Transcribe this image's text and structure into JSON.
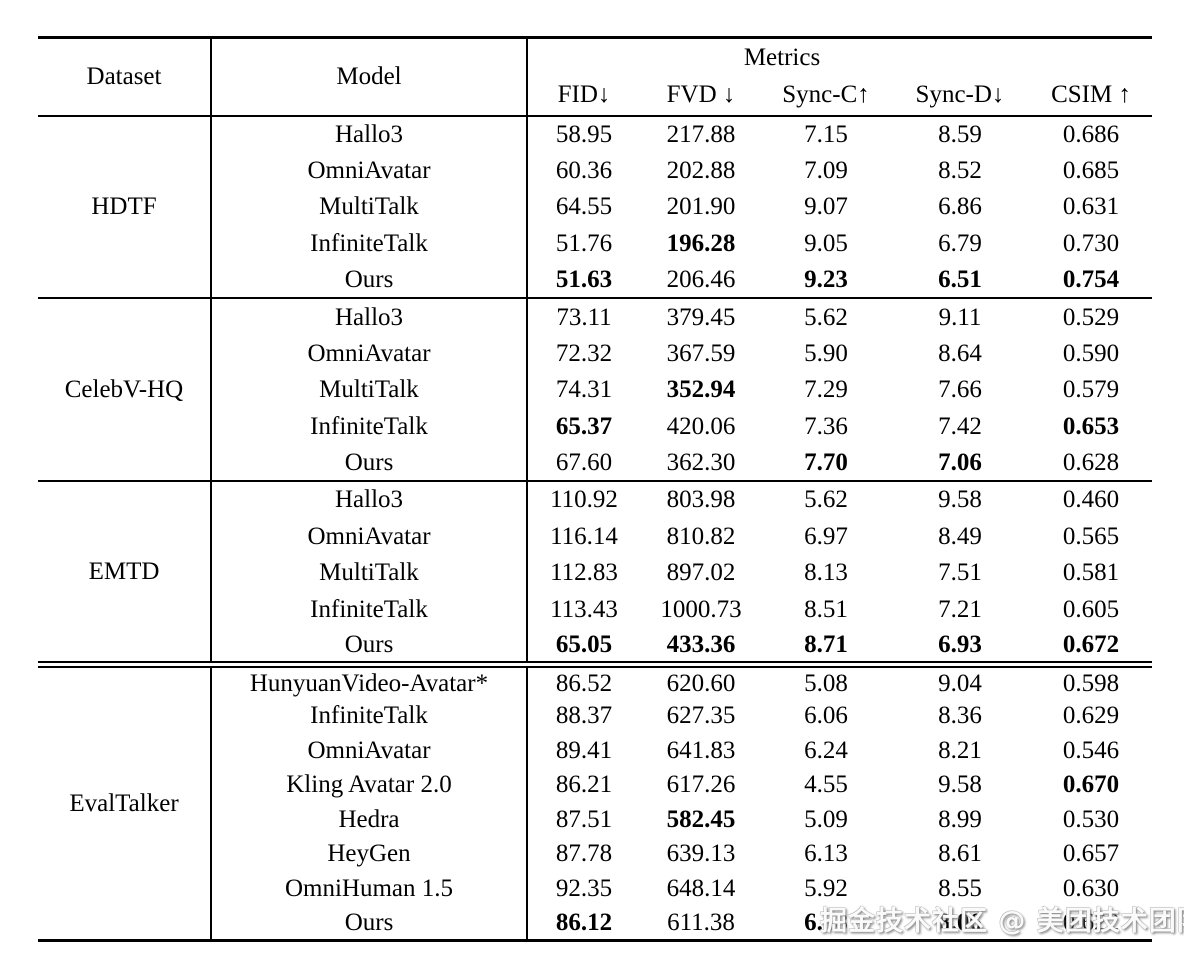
{
  "header": {
    "dataset_label": "Dataset",
    "model_label": "Model",
    "metrics_label": "Metrics",
    "metric_columns": [
      "FID↓",
      "FVD ↓",
      "Sync-C↑",
      "Sync-D↓",
      "CSIM ↑"
    ]
  },
  "sections": [
    {
      "dataset": "HDTF",
      "rows": [
        {
          "model": "Hallo3",
          "values": [
            "58.95",
            "217.88",
            "7.15",
            "8.59",
            "0.686"
          ],
          "bold": [
            false,
            false,
            false,
            false,
            false
          ]
        },
        {
          "model": "OmniAvatar",
          "values": [
            "60.36",
            "202.88",
            "7.09",
            "8.52",
            "0.685"
          ],
          "bold": [
            false,
            false,
            false,
            false,
            false
          ]
        },
        {
          "model": "MultiTalk",
          "values": [
            "64.55",
            "201.90",
            "9.07",
            "6.86",
            "0.631"
          ],
          "bold": [
            false,
            false,
            false,
            false,
            false
          ]
        },
        {
          "model": "InfiniteTalk",
          "values": [
            "51.76",
            "196.28",
            "9.05",
            "6.79",
            "0.730"
          ],
          "bold": [
            false,
            true,
            false,
            false,
            false
          ]
        },
        {
          "model": "Ours",
          "values": [
            "51.63",
            "206.46",
            "9.23",
            "6.51",
            "0.754"
          ],
          "bold": [
            true,
            false,
            true,
            true,
            true
          ]
        }
      ]
    },
    {
      "dataset": "CelebV-HQ",
      "rows": [
        {
          "model": "Hallo3",
          "values": [
            "73.11",
            "379.45",
            "5.62",
            "9.11",
            "0.529"
          ],
          "bold": [
            false,
            false,
            false,
            false,
            false
          ]
        },
        {
          "model": "OmniAvatar",
          "values": [
            "72.32",
            "367.59",
            "5.90",
            "8.64",
            "0.590"
          ],
          "bold": [
            false,
            false,
            false,
            false,
            false
          ]
        },
        {
          "model": "MultiTalk",
          "values": [
            "74.31",
            "352.94",
            "7.29",
            "7.66",
            "0.579"
          ],
          "bold": [
            false,
            true,
            false,
            false,
            false
          ]
        },
        {
          "model": "InfiniteTalk",
          "values": [
            "65.37",
            "420.06",
            "7.36",
            "7.42",
            "0.653"
          ],
          "bold": [
            true,
            false,
            false,
            false,
            true
          ]
        },
        {
          "model": "Ours",
          "values": [
            "67.60",
            "362.30",
            "7.70",
            "7.06",
            "0.628"
          ],
          "bold": [
            false,
            false,
            true,
            true,
            false
          ]
        }
      ]
    },
    {
      "dataset": "EMTD",
      "rows": [
        {
          "model": "Hallo3",
          "values": [
            "110.92",
            "803.98",
            "5.62",
            "9.58",
            "0.460"
          ],
          "bold": [
            false,
            false,
            false,
            false,
            false
          ]
        },
        {
          "model": "OmniAvatar",
          "values": [
            "116.14",
            "810.82",
            "6.97",
            "8.49",
            "0.565"
          ],
          "bold": [
            false,
            false,
            false,
            false,
            false
          ]
        },
        {
          "model": "MultiTalk",
          "values": [
            "112.83",
            "897.02",
            "8.13",
            "7.51",
            "0.581"
          ],
          "bold": [
            false,
            false,
            false,
            false,
            false
          ]
        },
        {
          "model": "InfiniteTalk",
          "values": [
            "113.43",
            "1000.73",
            "8.51",
            "7.21",
            "0.605"
          ],
          "bold": [
            false,
            false,
            false,
            false,
            false
          ]
        },
        {
          "model": "Ours",
          "values": [
            "65.05",
            "433.36",
            "8.71",
            "6.93",
            "0.672"
          ],
          "bold": [
            true,
            true,
            true,
            true,
            true
          ]
        }
      ]
    },
    {
      "dataset": "EvalTalker",
      "rows": [
        {
          "model": "HunyuanVideo-Avatar*",
          "values": [
            "86.52",
            "620.60",
            "5.08",
            "9.04",
            "0.598"
          ],
          "bold": [
            false,
            false,
            false,
            false,
            false
          ]
        },
        {
          "model": "InfiniteTalk",
          "values": [
            "88.37",
            "627.35",
            "6.06",
            "8.36",
            "0.629"
          ],
          "bold": [
            false,
            false,
            false,
            false,
            false
          ]
        },
        {
          "model": "OmniAvatar",
          "values": [
            "89.41",
            "641.83",
            "6.24",
            "8.21",
            "0.546"
          ],
          "bold": [
            false,
            false,
            false,
            false,
            false
          ]
        },
        {
          "model": "Kling Avatar 2.0",
          "values": [
            "86.21",
            "617.26",
            "4.55",
            "9.58",
            "0.670"
          ],
          "bold": [
            false,
            false,
            false,
            false,
            true
          ]
        },
        {
          "model": "Hedra",
          "values": [
            "87.51",
            "582.45",
            "5.09",
            "8.99",
            "0.530"
          ],
          "bold": [
            false,
            true,
            false,
            false,
            false
          ]
        },
        {
          "model": "HeyGen",
          "values": [
            "87.78",
            "639.13",
            "6.13",
            "8.61",
            "0.657"
          ],
          "bold": [
            false,
            false,
            false,
            false,
            false
          ]
        },
        {
          "model": "OmniHuman 1.5",
          "values": [
            "92.35",
            "648.14",
            "5.92",
            "8.55",
            "0.630"
          ],
          "bold": [
            false,
            false,
            false,
            false,
            false
          ]
        },
        {
          "model": "Ours",
          "values": [
            "86.12",
            "611.38",
            "6.38",
            "8.06",
            "0.622"
          ],
          "bold": [
            true,
            false,
            true,
            true,
            false
          ]
        }
      ]
    }
  ],
  "watermark": {
    "text": "掘金技术社区 @ 美团技术团队"
  },
  "colors": {
    "text": "#000000",
    "background": "#ffffff",
    "rule": "#000000",
    "watermark_fill": "#fafafa",
    "watermark_outline": "#8a8a8a"
  }
}
